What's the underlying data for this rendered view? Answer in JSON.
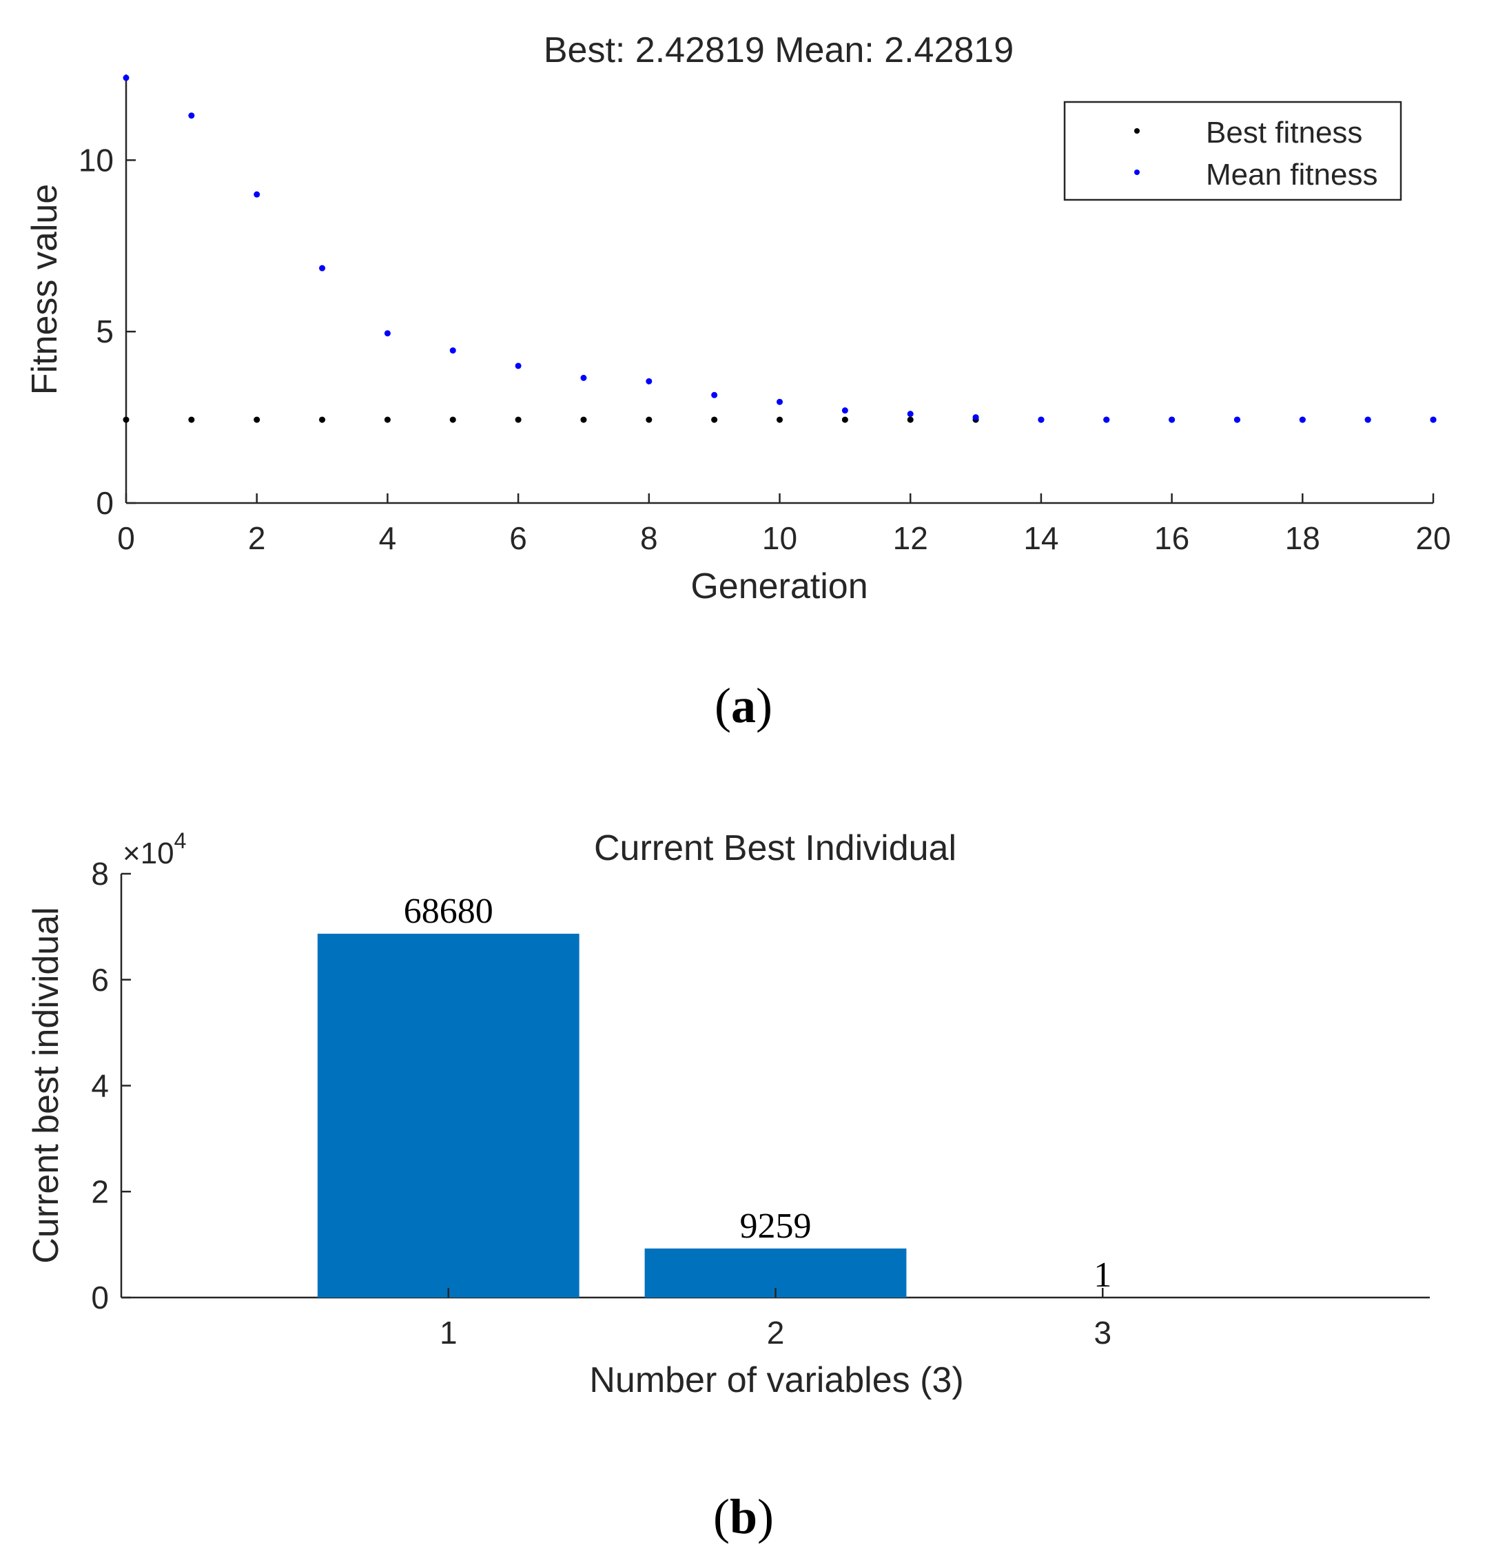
{
  "chart_data": [
    {
      "type": "scatter",
      "title": "Best: 2.42819 Mean: 2.42819",
      "xlabel": "Generation",
      "ylabel": "Fitness value",
      "xlim": [
        0,
        20
      ],
      "ylim": [
        0,
        12.5
      ],
      "xticks": [
        0,
        2,
        4,
        6,
        8,
        10,
        12,
        14,
        16,
        18,
        20
      ],
      "yticks": [
        0,
        5,
        10
      ],
      "grid": false,
      "legend_position": "top-right",
      "series": [
        {
          "name": "Best fitness",
          "color": "#000000",
          "x": [
            0,
            1,
            2,
            3,
            4,
            5,
            6,
            7,
            8,
            9,
            10,
            11,
            12,
            13,
            14,
            15,
            16,
            17,
            18,
            19,
            20
          ],
          "values": [
            2.43,
            2.43,
            2.43,
            2.43,
            2.43,
            2.43,
            2.43,
            2.43,
            2.43,
            2.43,
            2.43,
            2.43,
            2.43,
            2.43,
            2.43,
            2.43,
            2.43,
            2.43,
            2.43,
            2.43,
            2.43
          ]
        },
        {
          "name": "Mean fitness",
          "color": "#0000ff",
          "x": [
            0,
            1,
            2,
            3,
            4,
            5,
            6,
            7,
            8,
            9,
            10,
            11,
            12,
            13,
            14,
            15,
            16,
            17,
            18,
            19,
            20
          ],
          "values": [
            12.4,
            11.3,
            9.0,
            6.85,
            4.95,
            4.45,
            4.0,
            3.65,
            3.55,
            3.15,
            2.95,
            2.7,
            2.6,
            2.5,
            2.43,
            2.43,
            2.43,
            2.43,
            2.43,
            2.43,
            2.43
          ]
        }
      ],
      "panel_label": {
        "open": "(",
        "letter": "a",
        "close": ")"
      }
    },
    {
      "type": "bar",
      "title": "Current Best Individual",
      "xlabel": "Number of variables (3)",
      "ylabel": "Current best individual",
      "categories": [
        "1",
        "2",
        "3"
      ],
      "values": [
        68680,
        9259,
        1
      ],
      "data_labels": [
        "68680",
        "9259",
        "1"
      ],
      "ylim": [
        0,
        80000
      ],
      "yticks": [
        0,
        2,
        4,
        6,
        8
      ],
      "y_multiplier": {
        "base": "×10",
        "exponent": "4"
      },
      "bar_color": "#0072bd",
      "grid": false,
      "panel_label": {
        "open": "(",
        "letter": "b",
        "close": ")"
      }
    }
  ]
}
